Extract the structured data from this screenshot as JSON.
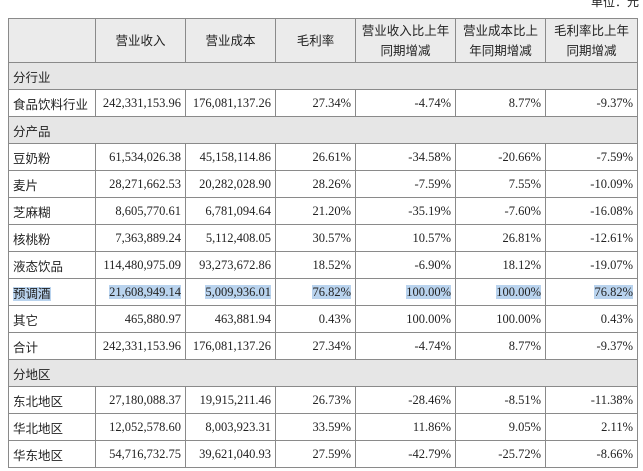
{
  "unit": "单位：元",
  "table": {
    "header": [
      "营业收入",
      "营业成本",
      "毛利率",
      "营业收入比上年同期增减",
      "营业成本比上年同期增减",
      "毛利率比上年同期增减"
    ],
    "rows": [
      [
        "分行业"
      ],
      [
        "食品饮料行业",
        "242,331,153.96",
        "176,081,137.26",
        "27.34%",
        "-4.74%",
        "8.77%",
        "-9.37%"
      ],
      [
        "分产品"
      ],
      [
        "豆奶粉",
        "61,534,026.38",
        "45,158,114.86",
        "26.61%",
        "-34.58%",
        "-20.66%",
        "-7.59%"
      ],
      [
        "麦片",
        "28,271,662.53",
        "20,282,028.90",
        "28.26%",
        "-7.59%",
        "7.55%",
        "-10.09%"
      ],
      [
        "芝麻糊",
        "8,605,770.61",
        "6,781,094.64",
        "21.20%",
        "-35.19%",
        "-7.60%",
        "-16.08%"
      ],
      [
        "核桃粉",
        "7,363,889.24",
        "5,112,408.05",
        "30.57%",
        "10.57%",
        "26.81%",
        "-12.61%"
      ],
      [
        "液态饮品",
        "114,480,975.09",
        "93,273,672.86",
        "18.52%",
        "-6.90%",
        "18.12%",
        "-19.07%"
      ],
      [
        "预调酒",
        "21,608,949.14",
        "5,009,936.01",
        "76.82%",
        "100.00%",
        "100.00%",
        "76.82%"
      ],
      [
        "其它",
        "465,880.97",
        "463,881.94",
        "0.43%",
        "100.00%",
        "100.00%",
        "0.43%"
      ],
      [
        "合计",
        "242,331,153.96",
        "176,081,137.26",
        "27.34%",
        "-4.74%",
        "8.77%",
        "-9.37%"
      ],
      [
        "分地区"
      ],
      [
        "东北地区",
        "27,180,088.37",
        "19,915,211.46",
        "26.73%",
        "-28.46%",
        "-8.51%",
        "-11.38%"
      ],
      [
        "华北地区",
        "12,052,578.60",
        "8,003,923.31",
        "33.59%",
        "11.86%",
        "9.05%",
        "2.11%"
      ],
      [
        "华东地区",
        "54,716,732.75",
        "39,621,040.93",
        "27.59%",
        "-42.79%",
        "-25.72%",
        "-8.66%"
      ]
    ]
  }
}
